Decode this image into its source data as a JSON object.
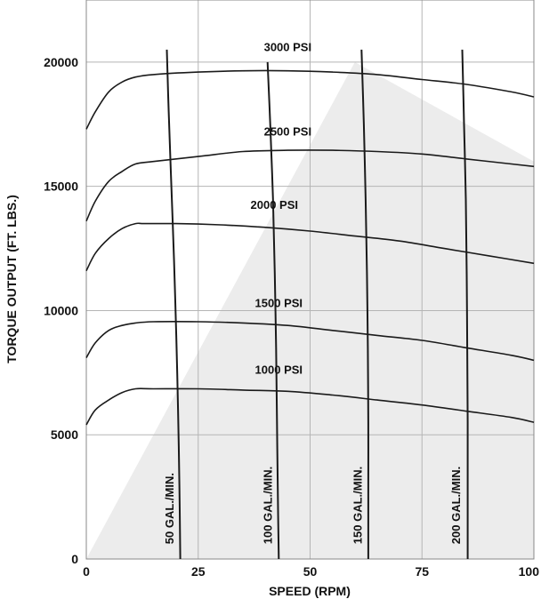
{
  "chart_data": {
    "type": "line",
    "title": "",
    "xlabel": "SPEED (RPM)",
    "ylabel": "TORQUE OUTPUT (FT. LBS.)",
    "xlim": [
      0,
      100
    ],
    "ylim": [
      0,
      22500
    ],
    "x_ticks": [
      "0",
      "25",
      "50",
      "75",
      "100"
    ],
    "y_ticks": [
      "0",
      "5000",
      "10000",
      "15000",
      "20000"
    ],
    "x_tick_values": [
      0,
      25,
      50,
      75,
      100
    ],
    "y_tick_values": [
      0,
      5000,
      10000,
      15000,
      20000
    ],
    "grid": true,
    "operating_region": {
      "x": [
        0,
        60,
        100,
        100,
        0
      ],
      "y": [
        0,
        20000,
        16000,
        0,
        0
      ]
    },
    "series": [
      {
        "name": "3000 PSI",
        "x": [
          0,
          2,
          5,
          8,
          11,
          15,
          25,
          35,
          45,
          55,
          65,
          75,
          85,
          95,
          100
        ],
        "y": [
          17300,
          18000,
          18800,
          19200,
          19400,
          19500,
          19600,
          19650,
          19650,
          19600,
          19500,
          19300,
          19100,
          18800,
          18600
        ]
      },
      {
        "name": "2500 PSI",
        "x": [
          0,
          2,
          5,
          8,
          11,
          15,
          25,
          35,
          45,
          55,
          65,
          75,
          85,
          95,
          100
        ],
        "y": [
          13600,
          14400,
          15200,
          15600,
          15900,
          16000,
          16200,
          16400,
          16450,
          16450,
          16400,
          16300,
          16100,
          15900,
          15800
        ]
      },
      {
        "name": "2000 PSI",
        "x": [
          0,
          2,
          5,
          8,
          11,
          13,
          20,
          30,
          40,
          50,
          60,
          70,
          80,
          90,
          100
        ],
        "y": [
          11600,
          12300,
          12900,
          13300,
          13500,
          13500,
          13500,
          13450,
          13350,
          13200,
          13000,
          12800,
          12500,
          12200,
          11900
        ]
      },
      {
        "name": "1500 PSI",
        "x": [
          0,
          2,
          5,
          8,
          11,
          15,
          25,
          35,
          45,
          55,
          65,
          75,
          85,
          95,
          100
        ],
        "y": [
          8100,
          8700,
          9200,
          9400,
          9500,
          9550,
          9550,
          9500,
          9400,
          9200,
          9000,
          8800,
          8500,
          8200,
          8000
        ]
      },
      {
        "name": "1000 PSI",
        "x": [
          0,
          2,
          5,
          8,
          11,
          15,
          25,
          35,
          45,
          55,
          65,
          75,
          85,
          95,
          100
        ],
        "y": [
          5400,
          6000,
          6400,
          6700,
          6850,
          6850,
          6850,
          6800,
          6750,
          6600,
          6400,
          6200,
          5950,
          5700,
          5500
        ]
      },
      {
        "name": "50 GAL./MIN.",
        "x": [
          18,
          18.4,
          19,
          19.6,
          20.1,
          20.5,
          20.8,
          21
        ],
        "y": [
          20500,
          18000,
          15000,
          12000,
          9000,
          6000,
          3000,
          0
        ]
      },
      {
        "name": "100 GAL./MIN.",
        "x": [
          40.5,
          41.1,
          41.7,
          42.1,
          42.4,
          42.6,
          42.8,
          43
        ],
        "y": [
          20000,
          17500,
          14500,
          11500,
          8500,
          5500,
          2500,
          0
        ]
      },
      {
        "name": "150 GAL./MIN.",
        "x": [
          61.5,
          62,
          62.4,
          62.7,
          62.9,
          63,
          63,
          63
        ],
        "y": [
          20500,
          17500,
          14500,
          11500,
          8500,
          5500,
          2500,
          0
        ]
      },
      {
        "name": "200 GAL./MIN.",
        "x": [
          84,
          84.4,
          84.8,
          85,
          85.1,
          85.2,
          85.2,
          85.2
        ],
        "y": [
          20500,
          17500,
          14500,
          11500,
          8500,
          5500,
          2500,
          0
        ]
      }
    ],
    "annotations": [
      {
        "text": "3000 PSI",
        "x": 45,
        "y": 20450
      },
      {
        "text": "2500 PSI",
        "x": 45,
        "y": 17050
      },
      {
        "text": "2000 PSI",
        "x": 42,
        "y": 14100
      },
      {
        "text": "1500 PSI",
        "x": 43,
        "y": 10150
      },
      {
        "text": "1000 PSI",
        "x": 43,
        "y": 7450
      }
    ],
    "flow_labels": [
      {
        "text": "50 GAL./MIN.",
        "x": 19.5,
        "y": 600
      },
      {
        "text": "100 GAL./MIN.",
        "x": 41.5,
        "y": 600
      },
      {
        "text": "150 GAL./MIN.",
        "x": 61.5,
        "y": 600
      },
      {
        "text": "200 GAL./MIN.",
        "x": 83.5,
        "y": 600
      }
    ]
  }
}
